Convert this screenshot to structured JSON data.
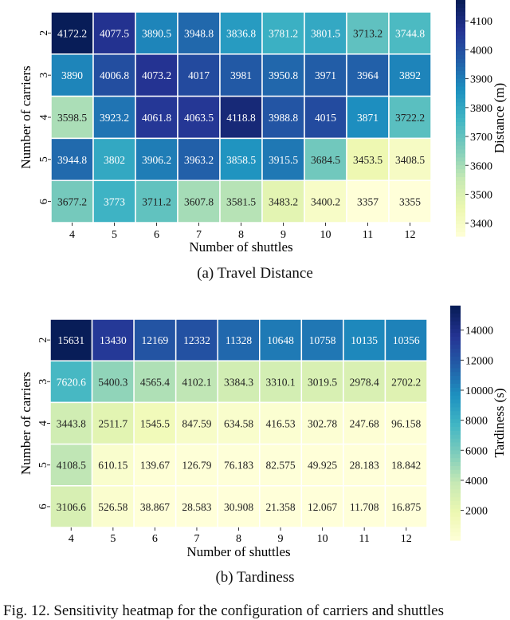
{
  "chart_data": [
    {
      "type": "heatmap",
      "caption": "(a)  Travel Distance",
      "xlabel": "Number of shuttles",
      "ylabel": "Number of carriers",
      "colorbar_label": "Distance (m)",
      "colormap": "YlGnBu",
      "x": [
        "4",
        "5",
        "6",
        "7",
        "8",
        "9",
        "10",
        "11",
        "12"
      ],
      "y": [
        "2",
        "3",
        "4",
        "5",
        "6"
      ],
      "values": [
        [
          "4172.2",
          "4077.5",
          "3890.5",
          "3948.8",
          "3836.8",
          "3781.2",
          "3801.5",
          "3713.2",
          "3744.8"
        ],
        [
          "3890",
          "4006.8",
          "4073.2",
          "4017",
          "3981",
          "3950.8",
          "3971",
          "3964",
          "3892"
        ],
        [
          "3598.5",
          "3923.2",
          "4061.8",
          "4063.5",
          "4118.8",
          "3988.8",
          "4015",
          "3871",
          "3722.2"
        ],
        [
          "3944.8",
          "3802",
          "3906.2",
          "3963.2",
          "3858.5",
          "3915.5",
          "3684.5",
          "3453.5",
          "3408.5"
        ],
        [
          "3677.2",
          "3773",
          "3711.2",
          "3607.8",
          "3581.5",
          "3483.2",
          "3400.2",
          "3357",
          "3355"
        ]
      ],
      "colorbar_ticks": [
        "3400",
        "3500",
        "3600",
        "3700",
        "3800",
        "3900",
        "4000",
        "4100"
      ],
      "vmin": 3355,
      "vmax": 4172.2
    },
    {
      "type": "heatmap",
      "caption": "(b)  Tardiness",
      "xlabel": "Number of shuttles",
      "ylabel": "Number of carriers",
      "colorbar_label": "Tardiness (s)",
      "colormap": "YlGnBu",
      "x": [
        "4",
        "5",
        "6",
        "7",
        "8",
        "9",
        "10",
        "11",
        "12"
      ],
      "y": [
        "2",
        "3",
        "4",
        "5",
        "6"
      ],
      "values": [
        [
          "15631",
          "13430",
          "12169",
          "12332",
          "11328",
          "10648",
          "10758",
          "10135",
          "10356"
        ],
        [
          "7620.6",
          "5400.3",
          "4565.4",
          "4102.1",
          "3384.3",
          "3310.1",
          "3019.5",
          "2978.4",
          "2702.2"
        ],
        [
          "3443.8",
          "2511.7",
          "1545.5",
          "847.59",
          "634.58",
          "416.53",
          "302.78",
          "247.68",
          "96.158"
        ],
        [
          "4108.5",
          "610.15",
          "139.67",
          "126.79",
          "76.183",
          "82.575",
          "49.925",
          "28.183",
          "18.842"
        ],
        [
          "3106.6",
          "526.58",
          "38.867",
          "28.583",
          "30.908",
          "21.358",
          "12.067",
          "11.708",
          "16.875"
        ]
      ],
      "colorbar_ticks": [
        "2000",
        "4000",
        "6000",
        "8000",
        "10000",
        "12000",
        "14000"
      ],
      "vmin": 11.708,
      "vmax": 15631
    }
  ],
  "figure_caption": "Fig. 12.   Sensitivity heatmap for the configuration of carriers and shuttles"
}
